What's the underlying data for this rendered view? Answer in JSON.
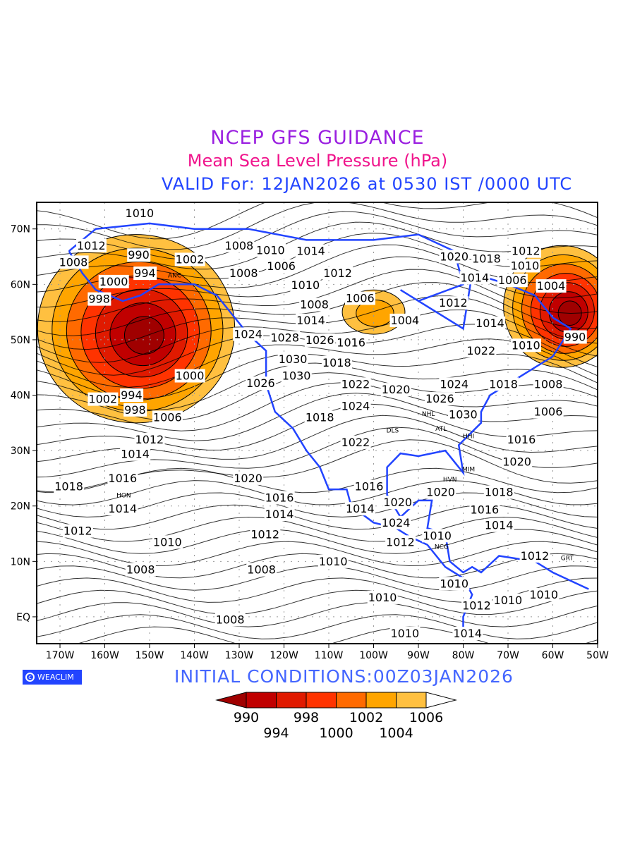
{
  "title": {
    "line1": "NCEP GFS GUIDANCE",
    "line2": "Mean Sea Level Pressure (hPa)",
    "line3": "VALID For: 12JAN2026 at 0530 IST /0000 UTC"
  },
  "footer": {
    "logo": "WEACLIM",
    "logo_icon": "copyright-icon",
    "initial_conditions": "INITIAL  CONDITIONS:00Z03JAN2026"
  },
  "colorbar": {
    "labels": [
      "990",
      "994",
      "998",
      "1000",
      "1002",
      "1004",
      "1006"
    ],
    "colors": [
      "#a00000",
      "#c00000",
      "#e01a00",
      "#ff3300",
      "#ff6a00",
      "#ffa500",
      "#ffc040",
      "#ffffff"
    ]
  },
  "axes": {
    "lon_labels": [
      "170W",
      "160W",
      "150W",
      "140W",
      "130W",
      "120W",
      "110W",
      "100W",
      "90W",
      "80W",
      "70W",
      "60W",
      "50W"
    ],
    "lon_values": [
      -170,
      -160,
      -150,
      -140,
      -130,
      -120,
      -110,
      -100,
      -90,
      -80,
      -70,
      -60,
      -50
    ],
    "lat_labels": [
      "70N",
      "60N",
      "50N",
      "40N",
      "30N",
      "20N",
      "10N",
      "EQ"
    ],
    "lat_values": [
      70,
      60,
      50,
      40,
      30,
      20,
      10,
      0
    ]
  },
  "lows": [
    {
      "lon": -153,
      "lat": 52,
      "rx": 22,
      "ry": 17
    },
    {
      "lon": -58,
      "lat": 56,
      "rx": 13,
      "ry": 11
    },
    {
      "lon": -100,
      "lat": 55,
      "rx": 7,
      "ry": 4
    }
  ],
  "contour_labels": [
    {
      "t": "1010",
      "lon": -150,
      "lat": 74
    },
    {
      "t": "1012",
      "lon": -163,
      "lat": 67
    },
    {
      "t": "1008",
      "lon": -167,
      "lat": 64
    },
    {
      "t": "994",
      "lon": -151,
      "lat": 62
    },
    {
      "t": "990",
      "lon": -148,
      "lat": 63
    },
    {
      "t": "1000",
      "lon": -158,
      "lat": 60.5
    },
    {
      "t": "998",
      "lon": -159,
      "lat": 58.5
    },
    {
      "t": "1002",
      "lon": -141,
      "lat": 64.5
    },
    {
      "t": "1008",
      "lon": -130,
      "lat": 67
    },
    {
      "t": "1008",
      "lon": -129,
      "lat": 62
    },
    {
      "t": "1006",
      "lon": -125,
      "lat": 61
    },
    {
      "t": "1010",
      "lon": -123,
      "lat": 65
    },
    {
      "t": "1014",
      "lon": -114,
      "lat": 66
    },
    {
      "t": "1012",
      "lon": -108,
      "lat": 62
    },
    {
      "t": "1010",
      "lon": -113,
      "lat": 61
    },
    {
      "t": "1008",
      "lon": -111,
      "lat": 57.5
    },
    {
      "t": "1006",
      "lon": -103,
      "lat": 57.5
    },
    {
      "t": "1004",
      "lon": -93,
      "lat": 53.5
    },
    {
      "t": "1014",
      "lon": -114,
      "lat": 53.5
    },
    {
      "t": "1024",
      "lon": -128,
      "lat": 51
    },
    {
      "t": "1028",
      "lon": -122,
      "lat": 51.5
    },
    {
      "t": "1016",
      "lon": -105,
      "lat": 49.5
    },
    {
      "t": "1018",
      "lon": -106,
      "lat": 47
    },
    {
      "t": "1030",
      "lon": -118,
      "lat": 46.5
    },
    {
      "t": "1026",
      "lon": -112,
      "lat": 46.5
    },
    {
      "t": "1030",
      "lon": -115,
      "lat": 43.5
    },
    {
      "t": "1022",
      "lon": -104,
      "lat": 42
    },
    {
      "t": "1020",
      "lon": -95,
      "lat": 41
    },
    {
      "t": "1026",
      "lon": -123,
      "lat": 41
    },
    {
      "t": "1024",
      "lon": -104,
      "lat": 38
    },
    {
      "t": "1018",
      "lon": -112,
      "lat": 36
    },
    {
      "t": "1022",
      "lon": -104,
      "lat": 31.5
    },
    {
      "t": "1000",
      "lon": -141,
      "lat": 43.5
    },
    {
      "t": "994",
      "lon": -154,
      "lat": 40
    },
    {
      "t": "998",
      "lon": -151,
      "lat": 38.5
    },
    {
      "t": "1002",
      "lon": -156,
      "lat": 37
    },
    {
      "t": "1006",
      "lon": -146,
      "lat": 36
    },
    {
      "t": "1012",
      "lon": -150,
      "lat": 32
    },
    {
      "t": "1014",
      "lon": -151,
      "lat": 30.5
    },
    {
      "t": "1016",
      "lon": -156,
      "lat": 25
    },
    {
      "t": "1018",
      "lon": -168,
      "lat": 23.5
    },
    {
      "t": "1020",
      "lon": -128,
      "lat": 25
    },
    {
      "t": "1016",
      "lon": -121,
      "lat": 21.5
    },
    {
      "t": "1014",
      "lon": -121,
      "lat": 18.5
    },
    {
      "t": "1014",
      "lon": -156,
      "lat": 19.5
    },
    {
      "t": "1012",
      "lon": -122,
      "lat": 16
    },
    {
      "t": "1012",
      "lon": -166,
      "lat": 15.5
    },
    {
      "t": "1010",
      "lon": -146,
      "lat": 13.5
    },
    {
      "t": "1008",
      "lon": -152,
      "lat": 8.5
    },
    {
      "t": "1008",
      "lon": -125,
      "lat": 8.5
    },
    {
      "t": "1010",
      "lon": -109,
      "lat": 10
    },
    {
      "t": "1010",
      "lon": -98,
      "lat": 3.5
    },
    {
      "t": "1008",
      "lon": -132,
      "lat": -0.5
    },
    {
      "t": "1010",
      "lon": -93,
      "lat": -3
    },
    {
      "t": "1014",
      "lon": -79,
      "lat": -3
    },
    {
      "t": "1016",
      "lon": -101,
      "lat": 23.5
    },
    {
      "t": "1014",
      "lon": -103,
      "lat": 19.5
    },
    {
      "t": "1020",
      "lon": -99,
      "lat": 19.5
    },
    {
      "t": "1024",
      "lon": -95,
      "lat": 17
    },
    {
      "t": "1012",
      "lon": -94,
      "lat": 13.5
    },
    {
      "t": "1010",
      "lon": -88,
      "lat": 13.5
    },
    {
      "t": "1020",
      "lon": -85,
      "lat": 22.5
    },
    {
      "t": "1018",
      "lon": -72,
      "lat": 22.5
    },
    {
      "t": "1016",
      "lon": -73,
      "lat": 20.5
    },
    {
      "t": "1014",
      "lon": -72,
      "lat": 16.5
    },
    {
      "t": "1020",
      "lon": -68,
      "lat": 28
    },
    {
      "t": "1016",
      "lon": -67,
      "lat": 32
    },
    {
      "t": "1030",
      "lon": -80,
      "lat": 36.5
    },
    {
      "t": "1024",
      "lon": -82,
      "lat": 42
    },
    {
      "t": "1026",
      "lon": -83,
      "lat": 40.5
    },
    {
      "t": "1018",
      "lon": -71,
      "lat": 42
    },
    {
      "t": "1008",
      "lon": -61,
      "lat": 42
    },
    {
      "t": "1006",
      "lon": -61,
      "lat": 37
    },
    {
      "t": "1022",
      "lon": -76,
      "lat": 48
    },
    {
      "t": "1010",
      "lon": -66,
      "lat": 49
    },
    {
      "t": "1014",
      "lon": -74,
      "lat": 53
    },
    {
      "t": "1012",
      "lon": -80,
      "lat": 55.5
    },
    {
      "t": "1020",
      "lon": -82,
      "lat": 65
    },
    {
      "t": "1018",
      "lon": -77,
      "lat": 63.5
    },
    {
      "t": "1014",
      "lon": -73,
      "lat": 63.5
    },
    {
      "t": "1012",
      "lon": -66,
      "lat": 66
    },
    {
      "t": "1010",
      "lon": -64,
      "lat": 64.5
    },
    {
      "t": "1006",
      "lon": -69,
      "lat": 63
    },
    {
      "t": "1004",
      "lon": -67,
      "lat": 62
    },
    {
      "t": "990",
      "lon": -55,
      "lat": 50.5
    },
    {
      "t": "1010",
      "lon": -82,
      "lat": 6
    },
    {
      "t": "1012",
      "lon": -64,
      "lat": 11
    },
    {
      "t": "1010",
      "lon": -62,
      "lat": 4
    },
    {
      "t": "1012",
      "lon": -77,
      "lat": 2
    },
    {
      "t": "1010",
      "lon": -70,
      "lat": 3
    }
  ],
  "stations": [
    {
      "t": "ANC",
      "lon": -150,
      "lat": 61
    },
    {
      "t": "HON",
      "lon": -157,
      "lat": 21.3
    },
    {
      "t": "HVN",
      "lon": -82,
      "lat": 23
    },
    {
      "t": "MIM",
      "lon": -80,
      "lat": 26
    },
    {
      "t": "NCG",
      "lon": -86,
      "lat": 12
    },
    {
      "t": "GRT",
      "lon": -58,
      "lat": 10
    },
    {
      "t": "DLS",
      "lon": -97,
      "lat": 33
    },
    {
      "t": "HHI",
      "lon": -80,
      "lat": 32
    },
    {
      "t": "NHL",
      "lon": -89,
      "lat": 36
    },
    {
      "t": "ATL",
      "lon": -84,
      "lat": 34.5
    }
  ]
}
